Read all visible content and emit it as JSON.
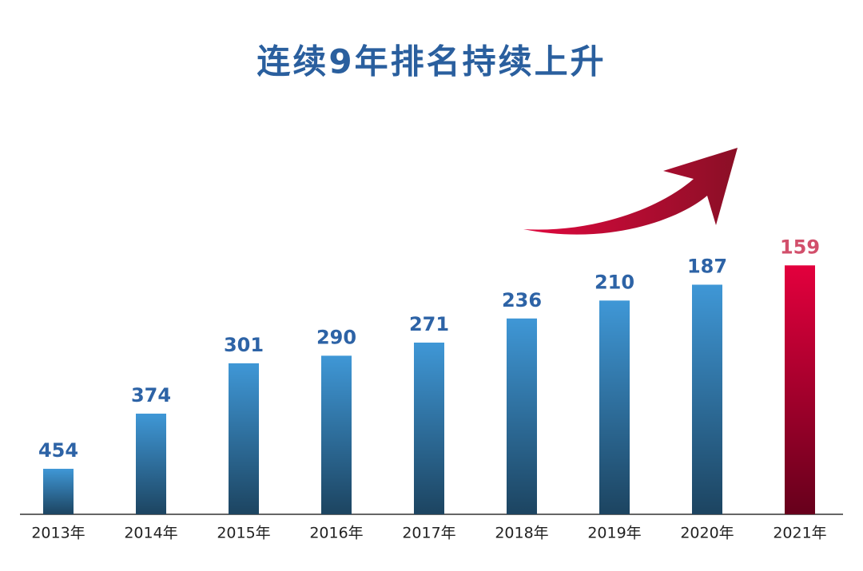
{
  "chart_data": {
    "type": "bar",
    "title": "连续9年排名持续上升",
    "categories": [
      "2013年",
      "2014年",
      "2015年",
      "2016年",
      "2017年",
      "2018年",
      "2019年",
      "2020年",
      "2021年"
    ],
    "values": [
      454,
      374,
      301,
      290,
      271,
      236,
      210,
      187,
      159
    ],
    "colors": [
      "#3f97d6",
      "#3f97d6",
      "#3f97d6",
      "#3f97d6",
      "#3f97d6",
      "#3f97d6",
      "#3f97d6",
      "#3f97d6",
      "#e3003d"
    ],
    "label_colors": [
      "#2d63a6",
      "#2d63a6",
      "#2d63a6",
      "#2d63a6",
      "#2d63a6",
      "#2d63a6",
      "#2d63a6",
      "#2d63a6",
      "#d24f6b"
    ],
    "ylim": [
      520,
      110
    ]
  }
}
